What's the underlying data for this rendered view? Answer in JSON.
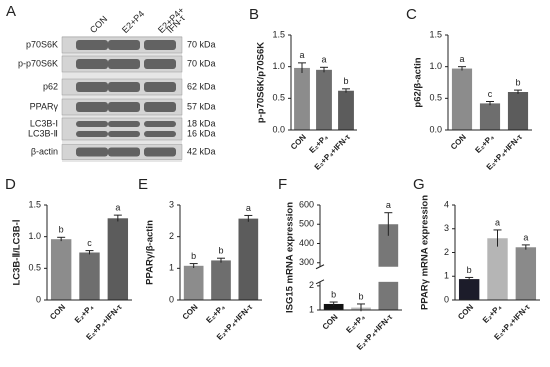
{
  "blot": {
    "panel": "A",
    "lanes": [
      [
        "CON"
      ],
      [
        "E2+P4"
      ],
      [
        "E2+P4+",
        "IFN-τ"
      ]
    ],
    "proteins": [
      {
        "label": "p70S6K",
        "size": "70 kDa"
      },
      {
        "label": "p-p70S6K",
        "size": "70 kDa"
      },
      {
        "label": "p62",
        "size": "62 kDa"
      },
      {
        "label": "PPARγ",
        "size": "57 kDa"
      },
      {
        "label": "LC3B-Ⅰ",
        "size": "18 kDa"
      },
      {
        "label": "LC3B-Ⅱ",
        "size": "16 kDa"
      },
      {
        "label": "β-actin",
        "size": "42 kDa"
      }
    ]
  },
  "chart_data": [
    {
      "type": "bar",
      "panel": "B",
      "ylabel": "p-p70S6K/p70S6K",
      "categories": [
        "CON",
        "E₂+P₄",
        "E₂+P₄+IFN-τ"
      ],
      "values": [
        0.98,
        0.95,
        0.62
      ],
      "errors": [
        0.08,
        0.04,
        0.03
      ],
      "letters": [
        "a",
        "a",
        "b"
      ],
      "colors": [
        "#8c8c8c",
        "#6e6e6e",
        "#5c5c5c"
      ],
      "ylim": [
        0,
        1.5
      ],
      "yticks": [
        {
          "value": 0,
          "label": "0.0"
        },
        {
          "value": 0.5,
          "label": "0.5"
        },
        {
          "value": 1,
          "label": "1.0"
        },
        {
          "value": 1.5,
          "label": "1.5"
        }
      ]
    },
    {
      "type": "bar",
      "panel": "C",
      "ylabel": "p62/β-actin",
      "categories": [
        "CON",
        "E₂+P₄",
        "E₂+P₄+IFN-τ"
      ],
      "values": [
        0.97,
        0.42,
        0.6
      ],
      "errors": [
        0.03,
        0.03,
        0.03
      ],
      "letters": [
        "a",
        "c",
        "b"
      ],
      "colors": [
        "#8c8c8c",
        "#6e6e6e",
        "#5c5c5c"
      ],
      "ylim": [
        0,
        1.5
      ],
      "yticks": [
        {
          "value": 0,
          "label": "0.0"
        },
        {
          "value": 0.5,
          "label": "0.5"
        },
        {
          "value": 1,
          "label": "1.0"
        },
        {
          "value": 1.5,
          "label": "1.5"
        }
      ]
    },
    {
      "type": "bar",
      "panel": "D",
      "ylabel": "LC3B-Ⅱ/LC3B-Ⅰ",
      "categories": [
        "CON",
        "E₂+P₄",
        "E₂+P₄+IFN-τ"
      ],
      "values": [
        0.96,
        0.75,
        1.29
      ],
      "errors": [
        0.03,
        0.03,
        0.05
      ],
      "letters": [
        "b",
        "c",
        "a"
      ],
      "colors": [
        "#8c8c8c",
        "#6e6e6e",
        "#5c5c5c"
      ],
      "ylim": [
        0,
        1.5
      ],
      "yticks": [
        0,
        0.5,
        {
          "value": 1,
          "label": "1.0"
        },
        1.5
      ]
    },
    {
      "type": "bar",
      "panel": "E",
      "ylabel": "PPARγ/β-actin",
      "categories": [
        "CON",
        "E₂+P₄",
        "E₂+P₄+IFN-τ"
      ],
      "values": [
        1.08,
        1.25,
        2.57
      ],
      "errors": [
        0.07,
        0.07,
        0.1
      ],
      "letters": [
        "b",
        "b",
        "a"
      ],
      "colors": [
        "#8c8c8c",
        "#6e6e6e",
        "#5c5c5c"
      ],
      "ylim": [
        0,
        3
      ],
      "yticks": [
        0,
        1,
        2,
        3
      ]
    },
    {
      "type": "bar",
      "panel": "F",
      "ylabel": "ISG15 mRNA expression",
      "categories": [
        "CON",
        "E₂+P₄",
        "E₂+P₄+IFN-τ"
      ],
      "values": [
        1.25,
        1.1,
        500
      ],
      "errors": [
        0.08,
        0.15,
        60
      ],
      "letters": [
        "b",
        "b",
        "a"
      ],
      "colors": [
        "#111111",
        "#bbbbbb",
        "#777777"
      ],
      "ylim": [
        1,
        600
      ],
      "ybreak": [
        2,
        300
      ],
      "yticks": [
        1,
        2,
        300,
        400,
        500,
        600
      ]
    },
    {
      "type": "bar",
      "panel": "G",
      "ylabel": "PPARγ mRNA expression",
      "categories": [
        "CON",
        "E₂+P₄",
        "E₂+P₄+IFN-τ"
      ],
      "values": [
        0.88,
        2.6,
        2.22
      ],
      "errors": [
        0.07,
        0.35,
        0.1
      ],
      "letters": [
        "b",
        "a",
        "a"
      ],
      "colors": [
        "#1c1c2a",
        "#b5b5b5",
        "#8a8a8a"
      ],
      "ylim": [
        0,
        4
      ],
      "yticks": [
        0,
        1,
        2,
        3,
        4
      ]
    }
  ]
}
